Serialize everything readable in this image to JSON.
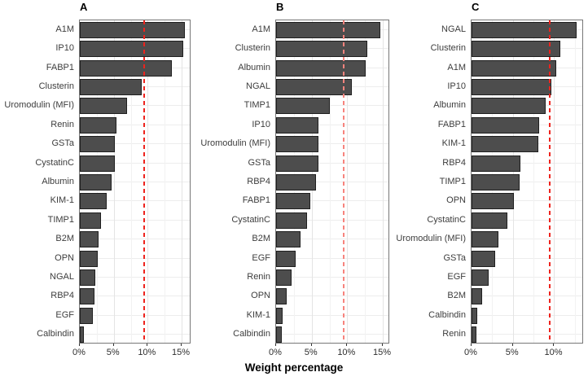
{
  "figure": {
    "xlabel": "Weight percentage",
    "colors": {
      "bar_fill": "#4d4d4d",
      "bar_border": "#1f1f1f",
      "grid_major": "#e4e4e4",
      "grid_minor": "#f2f2f2",
      "panel_border": "#777777",
      "ref_red": "#ee231d",
      "ref_red_light": "#f7837d"
    }
  },
  "chart_data": [
    {
      "type": "bar",
      "orientation": "horizontal",
      "title": "A",
      "categories": [
        "A1M",
        "IP10",
        "FABP1",
        "Clusterin",
        "Uromodulin (MFI)",
        "Renin",
        "GSTa",
        "CystatinC",
        "Albumin",
        "KIM-1",
        "TIMP1",
        "B2M",
        "OPN",
        "NGAL",
        "RBP4",
        "EGF",
        "Calbindin"
      ],
      "values": [
        15.5,
        15.2,
        13.5,
        9.1,
        7.0,
        5.4,
        5.2,
        5.1,
        4.7,
        3.9,
        3.1,
        2.7,
        2.6,
        2.3,
        2.2,
        1.9,
        0.6
      ],
      "xlabel": "Weight percentage",
      "xlim": [
        0,
        16.2
      ],
      "xticks": [
        0,
        5,
        10,
        15
      ],
      "xtick_labels": [
        "0%",
        "5%",
        "10%",
        "15%"
      ],
      "minor_ticks": [
        2.5,
        7.5,
        12.5
      ],
      "ref_line": 9.5,
      "ref_line_style": "dashed",
      "ref_line_color": "#ee231d",
      "grid": true
    },
    {
      "type": "bar",
      "orientation": "horizontal",
      "title": "B",
      "categories": [
        "A1M",
        "Clusterin",
        "Albumin",
        "NGAL",
        "TIMP1",
        "IP10",
        "Uromodulin (MFI)",
        "GSTa",
        "RBP4",
        "FABP1",
        "CystatinC",
        "B2M",
        "EGF",
        "Renin",
        "OPN",
        "KIM-1",
        "Calbindin"
      ],
      "values": [
        14.6,
        12.8,
        12.6,
        10.7,
        7.6,
        6.0,
        5.9,
        5.9,
        5.6,
        4.8,
        4.4,
        3.4,
        2.7,
        2.2,
        1.5,
        0.9,
        0.8
      ],
      "xlabel": "Weight percentage",
      "xlim": [
        0,
        15.8
      ],
      "xticks": [
        0,
        5,
        10,
        15
      ],
      "xtick_labels": [
        "0%",
        "5%",
        "10%",
        "15%"
      ],
      "minor_ticks": [
        2.5,
        7.5,
        12.5
      ],
      "ref_line": 9.5,
      "ref_line_style": "dashed",
      "ref_line_color": "#f7837d",
      "grid": true
    },
    {
      "type": "bar",
      "orientation": "horizontal",
      "title": "C",
      "categories": [
        "NGAL",
        "Clusterin",
        "A1M",
        "IP10",
        "Albumin",
        "FABP1",
        "KIM-1",
        "RBP4",
        "TIMP1",
        "OPN",
        "CystatinC",
        "Uromodulin (MFI)",
        "GSTa",
        "EGF",
        "B2M",
        "Calbindin",
        "Renin"
      ],
      "values": [
        12.7,
        10.7,
        10.2,
        9.7,
        9.0,
        8.2,
        8.1,
        5.9,
        5.8,
        5.1,
        4.3,
        3.3,
        2.9,
        2.1,
        1.3,
        0.7,
        0.6
      ],
      "xlabel": "Weight percentage",
      "xlim": [
        0,
        13.4
      ],
      "xticks": [
        0,
        5,
        10
      ],
      "xtick_labels": [
        "0%",
        "5%",
        "10%"
      ],
      "minor_ticks": [
        2.5,
        7.5,
        12.5
      ],
      "ref_line": 9.5,
      "ref_line_style": "dashed",
      "ref_line_color": "#ee231d",
      "grid": true
    }
  ]
}
